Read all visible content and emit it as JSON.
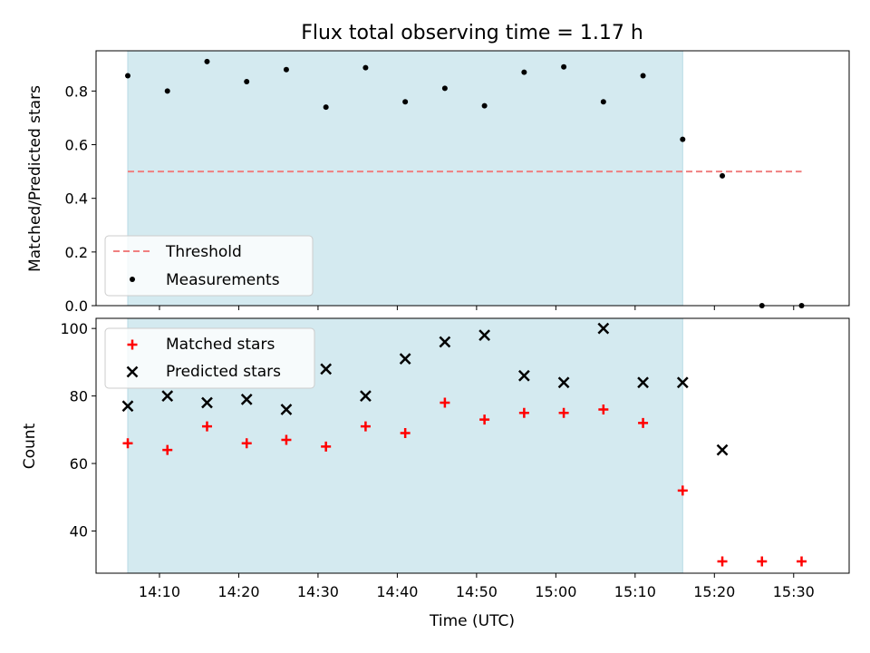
{
  "chart_data": {
    "type": "scatter",
    "title": "Flux total observing time = 1.17 h",
    "xlabel": "Time (UTC)",
    "x_tick_labels": [
      "14:10",
      "14:20",
      "14:30",
      "14:40",
      "14:50",
      "15:00",
      "15:10",
      "15:20",
      "15:30"
    ],
    "x_ticks_minutes": [
      850,
      860,
      870,
      880,
      890,
      900,
      910,
      920,
      930
    ],
    "xlim_minutes": [
      842,
      937
    ],
    "shaded_span_minutes": [
      846,
      916
    ],
    "shaded_color": "#d4eaf0",
    "time_minutes": [
      846,
      851,
      856,
      861,
      866,
      871,
      876,
      881,
      886,
      891,
      896,
      901,
      906,
      911,
      916,
      921,
      926,
      931
    ],
    "top": {
      "ylabel": "Matched/Predicted stars",
      "ylim": [
        0,
        0.95
      ],
      "yticks": [
        0.0,
        0.2,
        0.4,
        0.6,
        0.8
      ],
      "ytick_labels": [
        "0.0",
        "0.2",
        "0.4",
        "0.6",
        "0.8"
      ],
      "threshold": 0.5,
      "threshold_range_minutes": [
        846,
        931
      ],
      "threshold_color": "#f08080",
      "measurements": [
        0.857,
        0.8,
        0.91,
        0.835,
        0.88,
        0.74,
        0.887,
        0.76,
        0.81,
        0.745,
        0.87,
        0.89,
        0.76,
        0.857,
        0.62,
        0.484,
        0.0,
        0.0
      ],
      "legend": [
        "Threshold",
        "Measurements"
      ],
      "legend_position": "lower-left"
    },
    "bottom": {
      "ylabel": "Count",
      "ylim": [
        27.5,
        103
      ],
      "yticks": [
        40,
        60,
        80,
        100
      ],
      "ytick_labels": [
        "40",
        "60",
        "80",
        "100"
      ],
      "series": [
        {
          "name": "Matched stars",
          "marker": "plus",
          "color": "#ff0000",
          "values": [
            66,
            64,
            71,
            66,
            67,
            65,
            71,
            69,
            78,
            73,
            75,
            75,
            76,
            72,
            52,
            31,
            31,
            31
          ]
        },
        {
          "name": "Predicted stars",
          "marker": "x",
          "color": "#000000",
          "values": [
            77,
            80,
            78,
            79,
            76,
            88,
            80,
            91,
            96,
            98,
            86,
            84,
            100,
            84,
            84,
            64,
            null,
            null
          ]
        }
      ],
      "legend_position": "upper-left"
    }
  }
}
